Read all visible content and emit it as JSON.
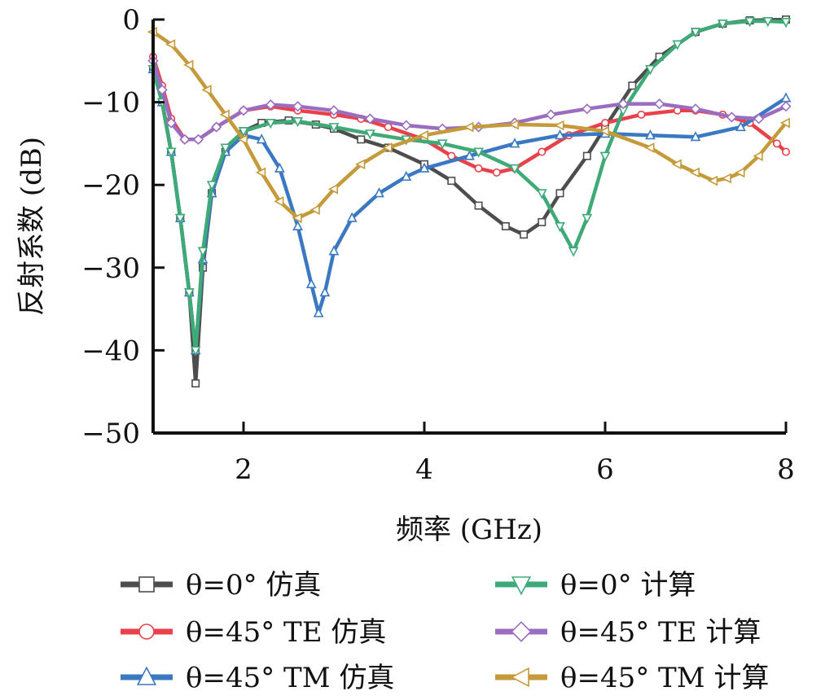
{
  "chart_data": {
    "type": "line",
    "title": "",
    "xlabel": "频率 (GHz)",
    "ylabel": "反射系数 (dB)",
    "xlim": [
      1,
      8
    ],
    "ylim": [
      -50,
      0
    ],
    "xticks": [
      2,
      4,
      6,
      8
    ],
    "yticks": [
      0,
      -10,
      -20,
      -30,
      -40,
      -50
    ],
    "xtick_labels": [
      "2",
      "4",
      "6",
      "8"
    ],
    "ytick_labels": [
      "0",
      "−10",
      "−20",
      "−30",
      "−40",
      "−50"
    ],
    "grid": false,
    "legend_position": "bottom",
    "series": [
      {
        "name": "θ=0° 仿真",
        "color": "#4d4d4d",
        "marker": "square",
        "x": [
          1.0,
          1.1,
          1.2,
          1.3,
          1.4,
          1.47,
          1.55,
          1.65,
          1.8,
          2.0,
          2.2,
          2.5,
          2.8,
          3.0,
          3.3,
          3.6,
          4.0,
          4.3,
          4.6,
          4.9,
          5.1,
          5.3,
          5.5,
          5.8,
          6.0,
          6.3,
          6.6,
          7.0,
          7.3,
          7.6,
          8.0
        ],
        "values": [
          -6,
          -10,
          -16,
          -24,
          -33,
          -44,
          -30,
          -21,
          -16,
          -13.5,
          -12.5,
          -12.2,
          -12.7,
          -13.2,
          -14.5,
          -15.5,
          -17.5,
          -19.5,
          -22.5,
          -25,
          -26,
          -24.5,
          -21,
          -16.5,
          -13,
          -8,
          -4.5,
          -1.5,
          -0.5,
          -0.1,
          0
        ]
      },
      {
        "name": "θ=45° TE 仿真",
        "color": "#e8414a",
        "marker": "circle",
        "x": [
          1.0,
          1.1,
          1.2,
          1.35,
          1.5,
          1.7,
          2.0,
          2.3,
          2.6,
          3.0,
          3.3,
          3.6,
          4.0,
          4.3,
          4.6,
          4.8,
          5.0,
          5.3,
          5.6,
          6.0,
          6.4,
          6.8,
          7.0,
          7.3,
          7.6,
          7.9,
          8.0
        ],
        "values": [
          -4.5,
          -8,
          -12,
          -14.5,
          -14.5,
          -13,
          -11,
          -10.5,
          -11,
          -11.5,
          -12,
          -13,
          -14.5,
          -16.5,
          -18,
          -18.5,
          -18,
          -16,
          -14,
          -12.5,
          -11.5,
          -11,
          -11,
          -11.5,
          -12.5,
          -15,
          -16
        ]
      },
      {
        "name": "θ=45° TM 仿真",
        "color": "#3a78c2",
        "marker": "triangle-up",
        "x": [
          1.0,
          1.1,
          1.2,
          1.3,
          1.4,
          1.47,
          1.55,
          1.65,
          1.8,
          2.0,
          2.2,
          2.4,
          2.6,
          2.75,
          2.83,
          2.9,
          3.0,
          3.2,
          3.5,
          3.8,
          4.0,
          4.5,
          5.0,
          5.5,
          6.0,
          6.5,
          7.0,
          7.5,
          8.0
        ],
        "values": [
          -6,
          -10,
          -16,
          -24,
          -33,
          -40,
          -29,
          -21,
          -16,
          -14,
          -14.5,
          -18,
          -25,
          -32,
          -35.5,
          -33,
          -28,
          -24,
          -21,
          -19,
          -18,
          -16.5,
          -15,
          -14,
          -13.8,
          -14,
          -14.2,
          -13,
          -9.5
        ]
      },
      {
        "name": "θ=0° 计算",
        "color": "#3faa78",
        "marker": "triangle-down",
        "x": [
          1.0,
          1.1,
          1.2,
          1.3,
          1.4,
          1.47,
          1.55,
          1.65,
          1.8,
          2.0,
          2.3,
          2.6,
          3.0,
          3.4,
          3.8,
          4.2,
          4.6,
          5.0,
          5.3,
          5.5,
          5.65,
          5.8,
          6.0,
          6.2,
          6.5,
          6.8,
          7.0,
          7.3,
          7.6,
          7.8,
          8.0
        ],
        "values": [
          -6,
          -10,
          -16,
          -24,
          -33,
          -40,
          -28,
          -20,
          -15.5,
          -13.5,
          -12.5,
          -12.3,
          -13,
          -13.8,
          -14.5,
          -15,
          -16,
          -18,
          -21,
          -25,
          -28,
          -24,
          -16.5,
          -11,
          -6,
          -3,
          -1.5,
          -0.5,
          -0.2,
          -0.2,
          -0.3
        ]
      },
      {
        "name": "θ=45° TE 计算",
        "color": "#9b6dc0",
        "marker": "diamond",
        "x": [
          1.0,
          1.1,
          1.2,
          1.35,
          1.5,
          1.7,
          2.0,
          2.3,
          2.6,
          3.0,
          3.4,
          3.8,
          4.2,
          4.6,
          5.0,
          5.4,
          5.8,
          6.2,
          6.6,
          7.0,
          7.4,
          7.7,
          8.0
        ],
        "values": [
          -5,
          -8.5,
          -12.5,
          -14.5,
          -14.5,
          -13,
          -11,
          -10.3,
          -10.5,
          -11,
          -12,
          -12.8,
          -13.2,
          -13,
          -12.5,
          -11.5,
          -10.8,
          -10.2,
          -10.2,
          -10.8,
          -11.8,
          -12,
          -10.5
        ]
      },
      {
        "name": "θ=45° TM 计算",
        "color": "#c49a3a",
        "marker": "triangle-left",
        "x": [
          1.0,
          1.2,
          1.4,
          1.6,
          1.8,
          2.0,
          2.2,
          2.4,
          2.6,
          2.8,
          3.0,
          3.3,
          3.6,
          4.0,
          4.5,
          5.0,
          5.5,
          6.0,
          6.5,
          6.8,
          7.0,
          7.2,
          7.35,
          7.5,
          7.7,
          8.0
        ],
        "values": [
          -1.5,
          -3,
          -5.5,
          -8.5,
          -11.5,
          -14.5,
          -18.5,
          -22,
          -24,
          -23,
          -20.5,
          -17.5,
          -15.5,
          -14,
          -13,
          -12.7,
          -12.8,
          -13.5,
          -15.5,
          -17.5,
          -18.5,
          -19.5,
          -19.2,
          -18.5,
          -16.5,
          -12.5
        ]
      }
    ],
    "legend_order": [
      0,
      3,
      1,
      4,
      2,
      5
    ]
  }
}
